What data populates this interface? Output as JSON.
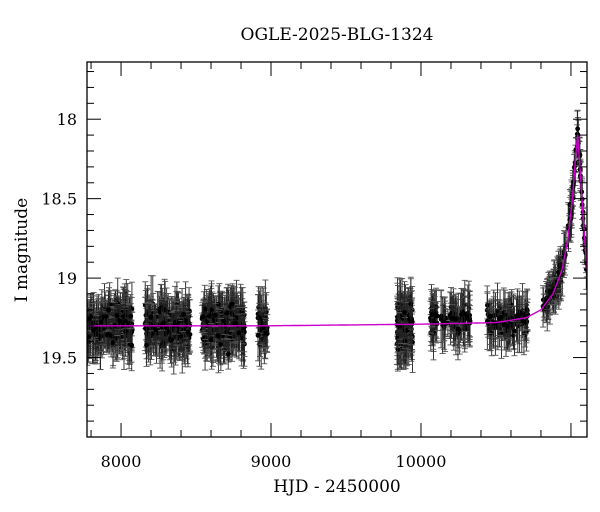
{
  "chart_data": {
    "type": "scatter",
    "title": "OGLE-2025-BLG-1324",
    "xlabel": "HJD - 2450000",
    "ylabel": "I magnitude",
    "xlim": [
      7773,
      11107
    ],
    "ylim": [
      20.0,
      17.64
    ],
    "y_inverted": true,
    "grid": false,
    "legend": null,
    "x_ticks": [
      {
        "value": 8000,
        "label": "8000"
      },
      {
        "value": 9000,
        "label": "9000"
      },
      {
        "value": 10000,
        "label": "10000"
      }
    ],
    "y_ticks": [
      {
        "value": 18,
        "label": "18"
      },
      {
        "value": 18.5,
        "label": "18.5"
      },
      {
        "value": 19,
        "label": "19"
      },
      {
        "value": 19.5,
        "label": "19.5"
      }
    ],
    "colors": {
      "data": "#000000",
      "model": "#cc00cc",
      "frame": "#000000"
    },
    "series": [
      {
        "name": "OGLE I-band photometry",
        "kind": "points_with_errorbars",
        "seasons": [
          {
            "x_start": 7773,
            "x_end": 8080,
            "mag_mean": 19.3,
            "mag_spread": 0.22,
            "err": 0.12,
            "n": 220
          },
          {
            "x_start": 8160,
            "x_end": 8460,
            "mag_mean": 19.3,
            "mag_spread": 0.22,
            "err": 0.12,
            "n": 220
          },
          {
            "x_start": 8540,
            "x_end": 8827,
            "mag_mean": 19.3,
            "mag_spread": 0.22,
            "err": 0.12,
            "n": 220
          },
          {
            "x_start": 8913,
            "x_end": 8975,
            "mag_mean": 19.3,
            "mag_spread": 0.2,
            "err": 0.12,
            "n": 40
          },
          {
            "x_start": 9840,
            "x_end": 9945,
            "mag_mean": 19.3,
            "mag_spread": 0.25,
            "err": 0.13,
            "n": 140
          },
          {
            "x_start": 10060,
            "x_end": 10330,
            "mag_mean": 19.27,
            "mag_spread": 0.15,
            "err": 0.12,
            "n": 90
          },
          {
            "x_start": 10440,
            "x_end": 10725,
            "mag_mean": 19.27,
            "mag_spread": 0.15,
            "err": 0.12,
            "n": 90
          },
          {
            "x_start": 10813,
            "x_end": 11107,
            "mag_mean": null,
            "mag_spread": 0.12,
            "err": 0.1,
            "n": 130,
            "note": "follows model rise to peak"
          }
        ]
      },
      {
        "name": "Microlensing model",
        "kind": "line",
        "baseline_mag": 19.3,
        "peak_hjd": 11045,
        "peak_mag": 18.1,
        "tE": 28,
        "x": [
          7773,
          9000,
          10000,
          10500,
          10700,
          10800,
          10880,
          10940,
          10980,
          11010,
          11030,
          11045,
          11060,
          11080,
          11107
        ],
        "y": [
          19.3,
          19.3,
          19.29,
          19.28,
          19.25,
          19.2,
          19.1,
          18.95,
          18.75,
          18.5,
          18.25,
          18.1,
          18.3,
          18.6,
          18.95
        ]
      }
    ]
  }
}
